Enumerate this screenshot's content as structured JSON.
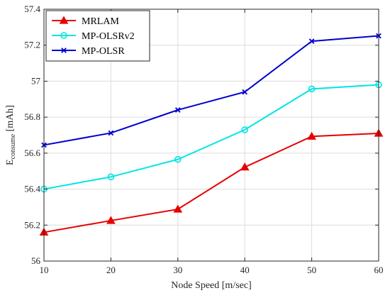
{
  "chart_data": {
    "type": "line",
    "x": [
      10,
      20,
      30,
      40,
      50,
      60
    ],
    "xlabel": "Node Speed [m/sec]",
    "ylabel": {
      "main": "E",
      "sub": "consume",
      "unit": " [mAh]"
    },
    "xlim": [
      10,
      60
    ],
    "ylim": [
      56,
      57.4
    ],
    "xticks": [
      "10",
      "20",
      "30",
      "40",
      "50",
      "60"
    ],
    "yticks": [
      "56",
      "56.2",
      "56.4",
      "56.6",
      "56.8",
      "57",
      "57.2",
      "57.4"
    ],
    "grid": true,
    "legend_position": "top-left",
    "series": [
      {
        "name": "MRLAM",
        "color": "#e60000",
        "marker": "triangle",
        "values": [
          56.16,
          56.225,
          56.288,
          56.522,
          56.693,
          56.71
        ]
      },
      {
        "name": "MP-OLSRv2",
        "color": "#00e5e5",
        "marker": "circle",
        "values": [
          56.4,
          56.468,
          56.565,
          56.73,
          56.957,
          56.98
        ]
      },
      {
        "name": "MP-OLSR",
        "color": "#0000cc",
        "marker": "x",
        "values": [
          56.645,
          56.712,
          56.84,
          56.94,
          57.222,
          57.252
        ]
      }
    ]
  }
}
